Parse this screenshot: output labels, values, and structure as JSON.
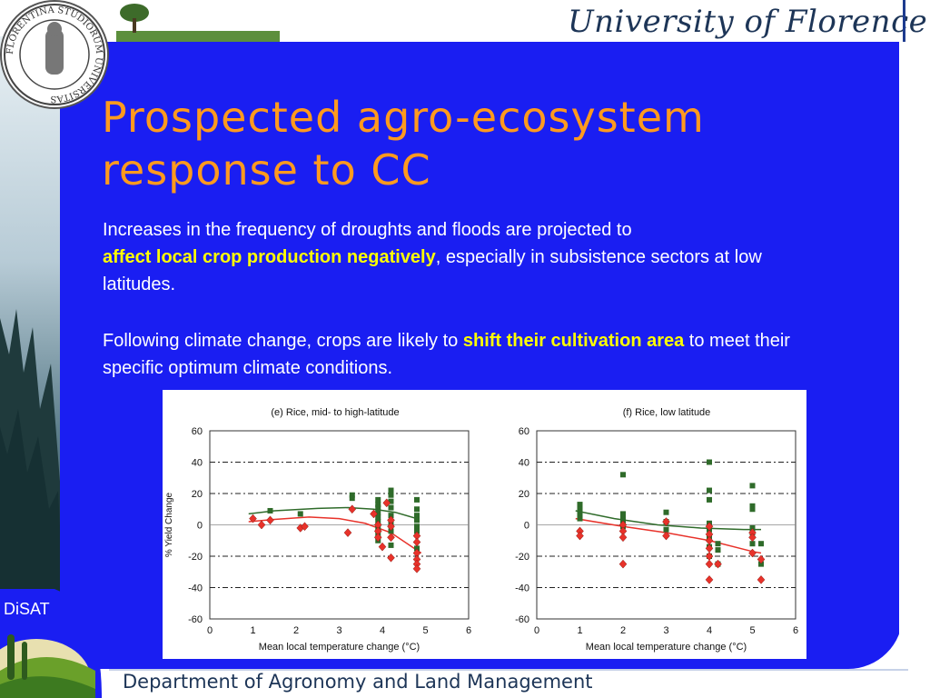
{
  "header": {
    "institution": "University of Florence"
  },
  "seal": {
    "text": "FLORENTINA STUDIORUM UNIVERSITAS"
  },
  "slide": {
    "title_line1": "Prospected agro-ecosystem",
    "title_line2": "response to CC",
    "para1_a": "Increases in the frequency of droughts and floods are projected to",
    "para1_highlight": "affect local crop production negatively",
    "para1_b": ", especially in subsistence sectors at low latitudes.",
    "para2_a": "Following climate change, crops are likely to ",
    "para2_highlight": "shift their cultivation area",
    "para2_b": " to meet their specific optimum climate conditions."
  },
  "footer": {
    "department": "Department of Agronomy and Land Management",
    "logo_label": "DiSAT"
  },
  "colors": {
    "panel": "#1a1ef2",
    "title": "#ff9a1e",
    "highlight": "#ffff00",
    "green_series": "#2f6b2a",
    "red_series": "#e8322a"
  },
  "chart_data": [
    {
      "type": "scatter",
      "title": "(e) Rice, mid- to high-latitude",
      "xlabel": "Mean local temperature change (°C)",
      "ylabel": "% Yield Change",
      "xlim": [
        0,
        6
      ],
      "ylim": [
        -60,
        60
      ],
      "xticks": [
        "0",
        "1",
        "2",
        "3",
        "4",
        "5",
        "6"
      ],
      "yticks": [
        "60",
        "40",
        "20",
        "0",
        "-20",
        "-40",
        "-60"
      ],
      "series": [
        {
          "marker": "square",
          "color": "#2f6b2a",
          "points": [
            [
              1.4,
              9
            ],
            [
              2.1,
              7
            ],
            [
              3.3,
              19
            ],
            [
              3.3,
              17
            ],
            [
              3.9,
              16
            ],
            [
              3.9,
              13
            ],
            [
              3.9,
              11
            ],
            [
              3.9,
              8
            ],
            [
              3.9,
              5
            ],
            [
              3.9,
              2
            ],
            [
              3.9,
              -2
            ],
            [
              3.9,
              -6
            ],
            [
              3.9,
              -10
            ],
            [
              4.2,
              22
            ],
            [
              4.2,
              19
            ],
            [
              4.2,
              15
            ],
            [
              4.2,
              11
            ],
            [
              4.2,
              6
            ],
            [
              4.2,
              1
            ],
            [
              4.2,
              -4
            ],
            [
              4.2,
              -13
            ],
            [
              4.8,
              16
            ],
            [
              4.8,
              10
            ],
            [
              4.8,
              6
            ],
            [
              4.8,
              3
            ],
            [
              4.8,
              -1
            ],
            [
              4.8,
              -4
            ],
            [
              4.8,
              -15
            ]
          ]
        },
        {
          "marker": "diamond",
          "color": "#e8322a",
          "points": [
            [
              1.0,
              4
            ],
            [
              1.2,
              0
            ],
            [
              1.4,
              3
            ],
            [
              2.1,
              -2
            ],
            [
              2.2,
              -1
            ],
            [
              3.2,
              -5
            ],
            [
              3.3,
              10
            ],
            [
              3.8,
              7
            ],
            [
              3.9,
              0
            ],
            [
              3.9,
              -4
            ],
            [
              3.9,
              -8
            ],
            [
              4.0,
              -14
            ],
            [
              4.1,
              14
            ],
            [
              4.2,
              3
            ],
            [
              4.2,
              -1
            ],
            [
              4.2,
              -8
            ],
            [
              4.2,
              -21
            ],
            [
              4.8,
              -7
            ],
            [
              4.8,
              -11
            ],
            [
              4.8,
              -18
            ],
            [
              4.8,
              -22
            ],
            [
              4.8,
              -25
            ],
            [
              4.8,
              -28
            ]
          ]
        },
        {
          "marker": "line",
          "color": "#2f6b2a",
          "points": [
            [
              0.9,
              7
            ],
            [
              1.5,
              9
            ],
            [
              2.5,
              10.5
            ],
            [
              3.2,
              11
            ],
            [
              3.8,
              10
            ],
            [
              4.3,
              8
            ],
            [
              4.8,
              4
            ]
          ]
        },
        {
          "marker": "line",
          "color": "#e8322a",
          "points": [
            [
              0.9,
              2
            ],
            [
              1.5,
              3.5
            ],
            [
              2.3,
              5
            ],
            [
              3.0,
              4
            ],
            [
              3.6,
              1
            ],
            [
              4.2,
              -5
            ],
            [
              4.9,
              -18
            ]
          ]
        }
      ]
    },
    {
      "type": "scatter",
      "title": "(f) Rice, low latitude",
      "xlabel": "Mean local temperature change (°C)",
      "ylabel": "",
      "xlim": [
        0,
        6
      ],
      "ylim": [
        -60,
        60
      ],
      "xticks": [
        "0",
        "1",
        "2",
        "3",
        "4",
        "5",
        "6"
      ],
      "yticks": [
        "60",
        "40",
        "20",
        "0",
        "-20",
        "-40",
        "-60"
      ],
      "series": [
        {
          "marker": "square",
          "color": "#2f6b2a",
          "points": [
            [
              1.0,
              13
            ],
            [
              1.0,
              10
            ],
            [
              1.0,
              8
            ],
            [
              1.0,
              6
            ],
            [
              1.0,
              4
            ],
            [
              2.0,
              32
            ],
            [
              2.0,
              7
            ],
            [
              2.0,
              5
            ],
            [
              2.0,
              2
            ],
            [
              2.0,
              -1
            ],
            [
              3.0,
              8
            ],
            [
              3.0,
              2
            ],
            [
              3.0,
              -3
            ],
            [
              4.0,
              40
            ],
            [
              4.0,
              22
            ],
            [
              4.0,
              16
            ],
            [
              4.0,
              1
            ],
            [
              4.0,
              -3
            ],
            [
              4.0,
              -8
            ],
            [
              4.0,
              -14
            ],
            [
              4.0,
              -20
            ],
            [
              4.2,
              -12
            ],
            [
              4.2,
              -16
            ],
            [
              4.2,
              -25
            ],
            [
              5.0,
              25
            ],
            [
              5.0,
              12
            ],
            [
              5.0,
              10
            ],
            [
              5.0,
              -2
            ],
            [
              5.0,
              -5
            ],
            [
              5.0,
              -12
            ],
            [
              5.2,
              -12
            ],
            [
              5.2,
              -25
            ]
          ]
        },
        {
          "marker": "diamond",
          "color": "#e8322a",
          "points": [
            [
              1.0,
              -4
            ],
            [
              1.0,
              -7
            ],
            [
              2.0,
              0
            ],
            [
              2.0,
              -4
            ],
            [
              2.0,
              -8
            ],
            [
              2.0,
              -25
            ],
            [
              3.0,
              2
            ],
            [
              3.0,
              -7
            ],
            [
              4.0,
              -1
            ],
            [
              4.0,
              -6
            ],
            [
              4.0,
              -10
            ],
            [
              4.0,
              -15
            ],
            [
              4.0,
              -20
            ],
            [
              4.0,
              -25
            ],
            [
              4.0,
              -35
            ],
            [
              4.2,
              -25
            ],
            [
              5.0,
              -5
            ],
            [
              5.0,
              -8
            ],
            [
              5.0,
              -18
            ],
            [
              5.2,
              -22
            ],
            [
              5.2,
              -35
            ]
          ]
        },
        {
          "marker": "line",
          "color": "#2f6b2a",
          "points": [
            [
              0.9,
              9
            ],
            [
              1.8,
              4
            ],
            [
              2.8,
              0
            ],
            [
              3.8,
              -2
            ],
            [
              4.8,
              -3
            ],
            [
              5.2,
              -3
            ]
          ]
        },
        {
          "marker": "line",
          "color": "#e8322a",
          "points": [
            [
              0.9,
              4
            ],
            [
              2.0,
              -1
            ],
            [
              3.0,
              -5
            ],
            [
              4.0,
              -10
            ],
            [
              5.0,
              -17
            ],
            [
              5.2,
              -18
            ]
          ]
        }
      ]
    }
  ]
}
